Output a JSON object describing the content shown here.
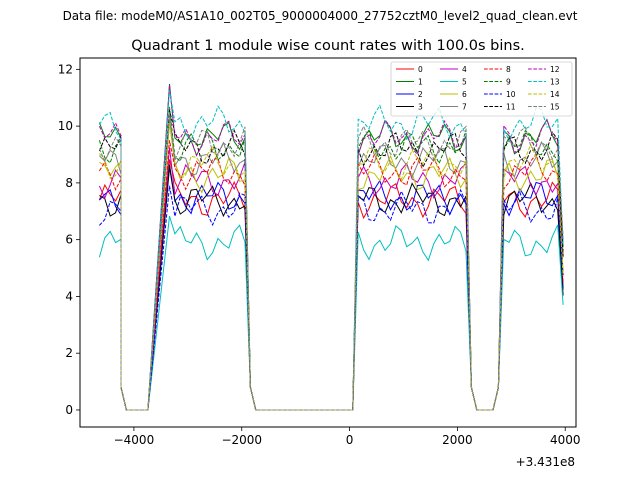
{
  "figure": {
    "suptitle": "Data file: modeM0/AS1A10_002T05_9000004000_27752cztM0_level2_quad_clean.evt"
  },
  "chart_data": {
    "type": "line",
    "title": "Quadrant 1 module wise count rates with 100.0s bins.",
    "xlabel": "",
    "ylabel": "",
    "x_offset_label": "+3.431e8",
    "xlim": [
      -5000,
      4200
    ],
    "ylim": [
      -0.6,
      12.4
    ],
    "xticks": [
      -4000,
      -2000,
      0,
      2000,
      4000
    ],
    "xtick_labels": [
      "−4000",
      "−2000",
      "0",
      "2000",
      "4000"
    ],
    "yticks": [
      0,
      2,
      4,
      6,
      8,
      10,
      12
    ],
    "ytick_labels": [
      "0",
      "2",
      "4",
      "6",
      "8",
      "10",
      "12"
    ],
    "grid": false,
    "legend_position": "top-right",
    "legend_columns": 4,
    "segments": [
      {
        "start": -4640,
        "step": 100,
        "n": 5
      },
      {
        "start": -4240,
        "step": 100,
        "n": 1,
        "zero": true
      },
      {
        "start": -4140,
        "step": 100,
        "n": 4,
        "zero": true
      },
      {
        "start": -3740,
        "step": 100,
        "n": 1,
        "zero": true
      },
      {
        "start": -3340,
        "step": 100,
        "n": 15
      },
      {
        "start": -1840,
        "step": 100,
        "n": 1,
        "zero": true
      },
      {
        "start": -1740,
        "step": 100,
        "n": 19,
        "zero": true
      },
      {
        "start": 160,
        "step": 100,
        "n": 21
      },
      {
        "start": 2260,
        "step": 100,
        "n": 1,
        "zero": true
      },
      {
        "start": 2360,
        "step": 100,
        "n": 4,
        "zero": true
      },
      {
        "start": 2760,
        "step": 100,
        "n": 1,
        "zero": true
      },
      {
        "start": 2860,
        "step": 100,
        "n": 12
      }
    ],
    "series": [
      {
        "name": "0",
        "color": "#ff0000",
        "dash": "solid",
        "level": 7.4
      },
      {
        "name": "1",
        "color": "#008000",
        "dash": "solid",
        "level": 9.6
      },
      {
        "name": "2",
        "color": "#0000ff",
        "dash": "solid",
        "level": 7.5
      },
      {
        "name": "3",
        "color": "#000000",
        "dash": "solid",
        "level": 7.4
      },
      {
        "name": "4",
        "color": "#bf00bf",
        "dash": "solid",
        "level": 8.1
      },
      {
        "name": "5",
        "color": "#00bfbf",
        "dash": "solid",
        "level": 5.9
      },
      {
        "name": "6",
        "color": "#bfbf00",
        "dash": "solid",
        "level": 8.3
      },
      {
        "name": "7",
        "color": "#808080",
        "dash": "solid",
        "level": 8.8
      },
      {
        "name": "8",
        "color": "#ff0000",
        "dash": "dashed",
        "level": 8.4
      },
      {
        "name": "9",
        "color": "#008000",
        "dash": "dashed",
        "level": 9.3
      },
      {
        "name": "10",
        "color": "#0000ff",
        "dash": "dashed",
        "level": 7.1
      },
      {
        "name": "11",
        "color": "#000000",
        "dash": "dashed",
        "level": 9.2
      },
      {
        "name": "12",
        "color": "#bf00bf",
        "dash": "dashed",
        "level": 9.6
      },
      {
        "name": "13",
        "color": "#00bfbf",
        "dash": "dashed",
        "level": 10.1
      },
      {
        "name": "14",
        "color": "#bfbf00",
        "dash": "dashed",
        "level": 8.7
      },
      {
        "name": "15",
        "color": "#808080",
        "dash": "dashed",
        "level": 9.4
      }
    ]
  }
}
